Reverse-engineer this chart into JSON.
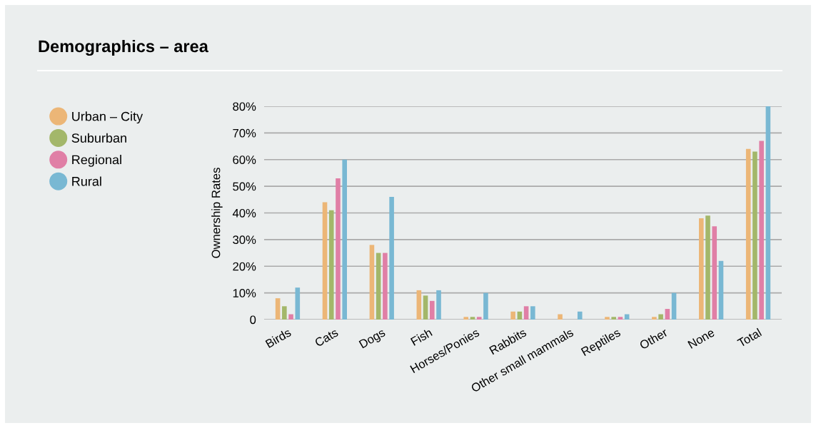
{
  "chart_data": {
    "type": "bar",
    "title": "Demographics – area",
    "ylabel": "Ownership Rates",
    "categories": [
      "Birds",
      "Cats",
      "Dogs",
      "Fish",
      "Horses/Ponies",
      "Rabbits",
      "Other small mammals",
      "Reptiles",
      "Other",
      "None",
      "Total"
    ],
    "series": [
      {
        "name": "Urban – City",
        "color": "#ecb677",
        "values": [
          8,
          44,
          28,
          11,
          1,
          3,
          2,
          1,
          1,
          38,
          64
        ]
      },
      {
        "name": "Suburban",
        "color": "#a3b76a",
        "values": [
          5,
          41,
          25,
          9,
          1,
          3,
          null,
          1,
          2,
          39,
          63
        ]
      },
      {
        "name": "Regional",
        "color": "#e07fa6",
        "values": [
          2,
          53,
          25,
          7,
          1,
          5,
          null,
          1,
          4,
          35,
          67
        ]
      },
      {
        "name": "Rural",
        "color": "#79b8d3",
        "values": [
          12,
          60,
          46,
          11,
          10,
          5,
          3,
          2,
          10,
          22,
          80
        ]
      }
    ],
    "ylim": [
      0,
      80
    ],
    "yticks": [
      0,
      {
        "value": 10,
        "label": "10%"
      },
      {
        "value": 20,
        "label": "20%"
      },
      {
        "value": 30,
        "label": "30%"
      },
      {
        "value": 40,
        "label": "40%"
      },
      {
        "value": 50,
        "label": "50%"
      },
      {
        "value": 60,
        "label": "60%"
      },
      {
        "value": 70,
        "label": "70%"
      },
      {
        "value": 80,
        "label": "80%"
      }
    ],
    "grid": "y",
    "legend": "left",
    "marker": "circle"
  }
}
